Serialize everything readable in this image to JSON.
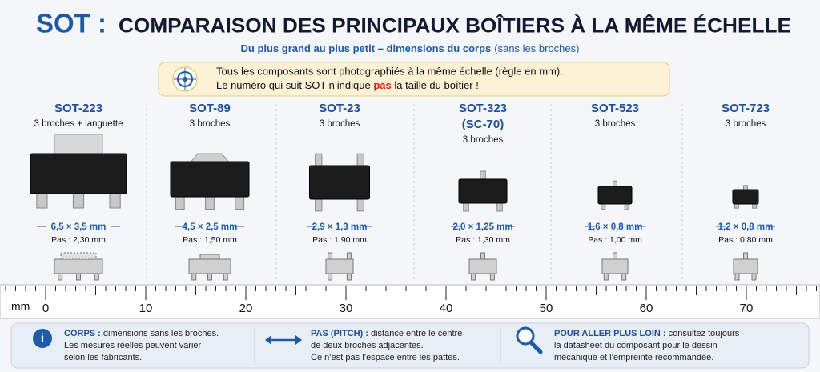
{
  "header": {
    "title_prefix": "SOT :",
    "title": "COMPARAISON DES PRINCIPAUX BOÎTIERS À LA MÊME ÉCHELLE",
    "subtitle": "Du plus grand au plus petit – dimensions du corps",
    "subtitle_note": "(sans les broches)"
  },
  "note": {
    "line1": "Tous les composants sont photographiés à la même échelle (règle en mm).",
    "line2_before": "Le numéro qui suit SOT n’indique ",
    "line2_highlight": "pas",
    "line2_after": " la taille du boîtier !"
  },
  "packages": [
    {
      "name": "SOT-223",
      "pins": "3 broches + languette",
      "body": "6,5 × 3,5 mm",
      "pitch": "Pas : 2,30 mm"
    },
    {
      "name": "SOT-89",
      "pins": "3 broches",
      "body": "4,5 × 2,5 mm",
      "pitch": "Pas : 1,50 mm"
    },
    {
      "name": "SOT-23",
      "pins": "3 broches",
      "body": "2,9 × 1,3 mm",
      "pitch": "Pas : 1,90 mm"
    },
    {
      "name": "SOT-323",
      "alias": "(SC-70)",
      "pins": "3 broches",
      "body": "2,0 × 1,25 mm",
      "pitch": "Pas : 1,30 mm"
    },
    {
      "name": "SOT-523",
      "pins": "3 broches",
      "body": "1,6 × 0,8 mm",
      "pitch": "Pas : 1,00 mm"
    },
    {
      "name": "SOT-723",
      "pins": "3 broches",
      "body": "1,2 × 0,8 mm",
      "pitch": "Pas : 0,80 mm"
    }
  ],
  "ruler": {
    "unit": "mm",
    "labels": [
      "0",
      "10",
      "20",
      "30",
      "40",
      "50",
      "60",
      "70"
    ]
  },
  "legend": [
    {
      "title": "CORPS :",
      "lines": [
        " dimensions sans les broches.",
        "Les mesures réelles peuvent varier",
        "selon les fabricants."
      ]
    },
    {
      "title": "PAS (PITCH) :",
      "lines": [
        " distance entre le centre",
        "de deux broches adjacentes.",
        "Ce n’est pas l’espace entre les pattes."
      ]
    },
    {
      "title": "POUR ALLER PLUS LOIN :",
      "lines": [
        " consultez toujours",
        "la datasheet du composant pour le dessin",
        "mécanique et l’empreinte recommandée."
      ]
    }
  ]
}
